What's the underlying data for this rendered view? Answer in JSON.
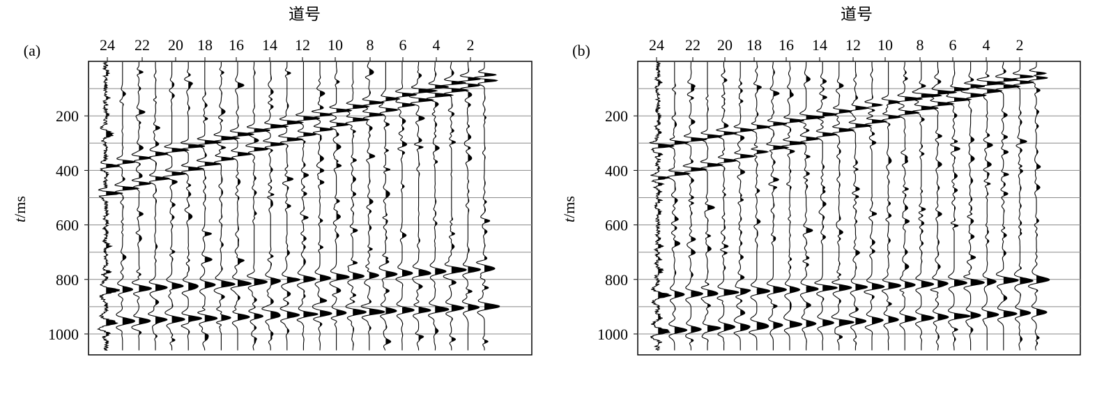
{
  "chart_data": [
    {
      "type": "seismic_wiggle",
      "panel_label": "(a)",
      "xlabel": "道号",
      "ylabel_italic": "t",
      "ylabel_unit": "/ms",
      "x_ticks": [
        "24",
        "22",
        "20",
        "18",
        "16",
        "14",
        "12",
        "10",
        "8",
        "6",
        "4",
        "2"
      ],
      "y_ticks": [
        "200",
        "400",
        "600",
        "800",
        "1000"
      ],
      "trace_count": 24,
      "ylim": [
        0,
        1050
      ],
      "gridlines_ms": [
        100,
        200,
        300,
        400,
        500,
        600,
        700,
        800,
        900,
        1000
      ],
      "events": [
        {
          "name": "direct_wave_1",
          "t_at_trace1": 50,
          "slope_ms_per_trace": 14.5
        },
        {
          "name": "direct_wave_2",
          "t_at_trace1": 70,
          "slope_ms_per_trace": 18.0
        },
        {
          "name": "reflection_1",
          "t_at_trace1": 760,
          "slope_ms_per_trace": 3.5
        },
        {
          "name": "reflection_2",
          "t_at_trace1": 900,
          "slope_ms_per_trace": 2.5
        }
      ]
    },
    {
      "type": "seismic_wiggle",
      "panel_label": "(b)",
      "xlabel": "道号",
      "ylabel_italic": "t",
      "ylabel_unit": "/ms",
      "x_ticks": [
        "24",
        "22",
        "20",
        "18",
        "16",
        "14",
        "12",
        "10",
        "8",
        "6",
        "4",
        "2"
      ],
      "y_ticks": [
        "200",
        "400",
        "600",
        "800",
        "1000"
      ],
      "trace_count": 24,
      "ylim": [
        0,
        1050
      ],
      "gridlines_ms": [
        100,
        200,
        300,
        400,
        500,
        600,
        700,
        800,
        900,
        1000
      ],
      "events": [
        {
          "name": "direct_wave_1",
          "t_at_trace1": 45,
          "slope_ms_per_trace": 11.5
        },
        {
          "name": "direct_wave_2",
          "t_at_trace1": 60,
          "slope_ms_per_trace": 16.0
        },
        {
          "name": "reflection_1",
          "t_at_trace1": 800,
          "slope_ms_per_trace": 2.5
        },
        {
          "name": "reflection_2",
          "t_at_trace1": 920,
          "slope_ms_per_trace": 3.0
        }
      ]
    }
  ]
}
